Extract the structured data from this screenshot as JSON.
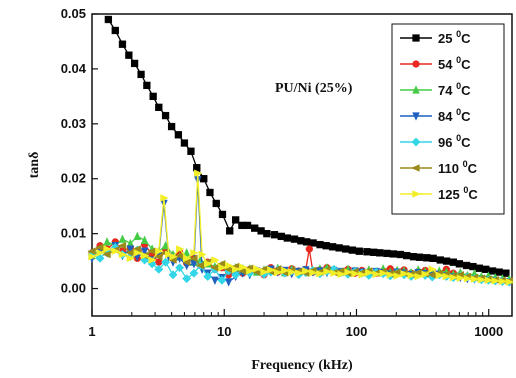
{
  "chart_data": {
    "type": "line",
    "title": "",
    "xlabel": "Frequency (kHz)",
    "ylabel": "tanδ",
    "xscale": "log",
    "xlim": [
      1,
      1500
    ],
    "ylim": [
      -0.005,
      0.05
    ],
    "xticks": [
      1,
      10,
      100,
      1000
    ],
    "xtick_labels": [
      "1",
      "10",
      "100",
      "1000"
    ],
    "yticks": [
      0.0,
      0.01,
      0.02,
      0.03,
      0.04,
      0.05
    ],
    "ytick_labels": [
      "0.00",
      "0.01",
      "0.02",
      "0.03",
      "0.04",
      "0.05"
    ],
    "annotation": "PU/Ni (25%)",
    "legend_position": "top-right",
    "series": [
      {
        "name": "25 °C",
        "label_base": "25 ",
        "label_sup": "0",
        "label_unit": "C",
        "color": "#000000",
        "marker": "square",
        "x": [
          1.33,
          1.5,
          1.7,
          1.9,
          2.1,
          2.35,
          2.6,
          2.9,
          3.2,
          3.6,
          4.0,
          4.5,
          5.0,
          5.6,
          6.2,
          7.0,
          7.8,
          8.7,
          9.7,
          11,
          12.2,
          13.6,
          15,
          17,
          19,
          21,
          24,
          27,
          30,
          34,
          38,
          42,
          47,
          53,
          59,
          66,
          74,
          83,
          93,
          105,
          120,
          135,
          150,
          170,
          190,
          215,
          240,
          270,
          300,
          340,
          380,
          430,
          480,
          540,
          600,
          680,
          760,
          850,
          950,
          1070,
          1200,
          1350
        ],
        "y": [
          0.049,
          0.047,
          0.0445,
          0.0425,
          0.041,
          0.039,
          0.037,
          0.035,
          0.033,
          0.0315,
          0.0295,
          0.028,
          0.0265,
          0.025,
          0.022,
          0.02,
          0.0175,
          0.0155,
          0.0135,
          0.0105,
          0.0125,
          0.0115,
          0.0115,
          0.011,
          0.0105,
          0.01,
          0.0098,
          0.0095,
          0.0092,
          0.009,
          0.0087,
          0.0085,
          0.0083,
          0.008,
          0.0078,
          0.0076,
          0.0074,
          0.0072,
          0.007,
          0.0068,
          0.0067,
          0.0066,
          0.0065,
          0.0064,
          0.0063,
          0.0062,
          0.006,
          0.0058,
          0.0057,
          0.0056,
          0.0055,
          0.0052,
          0.005,
          0.0048,
          0.0045,
          0.0042,
          0.004,
          0.0037,
          0.0035,
          0.0032,
          0.003,
          0.0028
        ]
      },
      {
        "name": "54 °C",
        "label_base": "54 ",
        "label_sup": "0",
        "label_unit": "C",
        "color": "#e8281c",
        "marker": "circle",
        "x": [
          1.0,
          1.15,
          1.3,
          1.5,
          1.7,
          1.95,
          2.2,
          2.5,
          2.85,
          3.2,
          3.6,
          4.1,
          4.6,
          5.2,
          5.9,
          6.6,
          7.5,
          8.5,
          9.6,
          10.8,
          12.2,
          13.8,
          15.6,
          17.6,
          20,
          22.5,
          25.4,
          28.7,
          32.4,
          36.6,
          41.4,
          44,
          46.8,
          52.9,
          59.8,
          67.6,
          76.4,
          86.3,
          97.5,
          110,
          124,
          141,
          159,
          180,
          203,
          229,
          259,
          293,
          331,
          374,
          423,
          478,
          540,
          610,
          690,
          780,
          880,
          995,
          1120,
          1270,
          1430
        ],
        "y": [
          0.0065,
          0.0078,
          0.0072,
          0.0085,
          0.0068,
          0.0075,
          0.0055,
          0.008,
          0.0062,
          0.0048,
          0.0072,
          0.0058,
          0.0066,
          0.0046,
          0.0055,
          0.0042,
          0.0048,
          0.0035,
          0.0038,
          0.0025,
          0.003,
          0.0028,
          0.0035,
          0.0032,
          0.0025,
          0.0038,
          0.003,
          0.0028,
          0.0036,
          0.0032,
          0.0035,
          0.0072,
          0.003,
          0.0034,
          0.0038,
          0.0032,
          0.003,
          0.0035,
          0.0028,
          0.0033,
          0.003,
          0.0028,
          0.0032,
          0.0036,
          0.003,
          0.0034,
          0.0028,
          0.0031,
          0.0033,
          0.003,
          0.0027,
          0.0035,
          0.0028,
          0.0025,
          0.0022,
          0.002,
          0.0018,
          0.0016,
          0.0015,
          0.0014,
          0.0012
        ]
      },
      {
        "name": "74 °C",
        "label_base": "74 ",
        "label_sup": "0",
        "label_unit": "C",
        "color": "#44cc44",
        "marker": "triangle-up",
        "x": [
          1.0,
          1.15,
          1.3,
          1.5,
          1.7,
          1.95,
          2.2,
          2.5,
          2.85,
          3.2,
          3.6,
          4.1,
          4.6,
          5.2,
          5.9,
          6.6,
          7.5,
          8.5,
          9.6,
          10.8,
          12.2,
          13.8,
          15.6,
          17.6,
          20,
          22.5,
          25.4,
          28.7,
          32.4,
          36.6,
          41.4,
          46.8,
          52.9,
          59.8,
          67.6,
          76.4,
          86.3,
          97.5,
          110,
          124,
          141,
          159,
          180,
          203,
          229,
          259,
          293,
          331,
          374,
          423,
          478,
          540,
          610,
          690,
          780,
          880,
          995,
          1120,
          1270,
          1430
        ],
        "y": [
          0.006,
          0.0072,
          0.0085,
          0.0078,
          0.009,
          0.0082,
          0.0095,
          0.0088,
          0.0072,
          0.0068,
          0.0078,
          0.0062,
          0.0058,
          0.0065,
          0.0048,
          0.0052,
          0.0045,
          0.004,
          0.0042,
          0.0035,
          0.0038,
          0.0032,
          0.0036,
          0.003,
          0.0034,
          0.0032,
          0.0037,
          0.0029,
          0.0035,
          0.0031,
          0.0034,
          0.0032,
          0.0036,
          0.0038,
          0.0033,
          0.003,
          0.0035,
          0.0032,
          0.0029,
          0.0034,
          0.0031,
          0.0036,
          0.003,
          0.0033,
          0.0032,
          0.0029,
          0.0034,
          0.0031,
          0.0028,
          0.0032,
          0.003,
          0.0026,
          0.0029,
          0.0024,
          0.0027,
          0.0022,
          0.0023,
          0.002,
          0.0018,
          0.0017
        ]
      },
      {
        "name": "84 °C",
        "label_base": "84 ",
        "label_sup": "0",
        "label_unit": "C",
        "color": "#1f5fbf",
        "marker": "triangle-down",
        "x": [
          1.0,
          1.15,
          1.3,
          1.5,
          1.7,
          1.95,
          2.2,
          2.5,
          2.85,
          3.2,
          3.5,
          3.8,
          4.1,
          4.6,
          5.2,
          5.9,
          6.3,
          6.8,
          7.5,
          8.5,
          9.6,
          10.8,
          12.2,
          13.8,
          15.6,
          17.6,
          20,
          22.5,
          25.4,
          28.7,
          32.4,
          36.6,
          41.4,
          46.8,
          52.9,
          59.8,
          67.6,
          76.4,
          86.3,
          97.5,
          110,
          124,
          141,
          159,
          180,
          203,
          229,
          259,
          293,
          331,
          374,
          423,
          478,
          540,
          610,
          690,
          780,
          880,
          995,
          1120,
          1270,
          1430
        ],
        "y": [
          0.0055,
          0.007,
          0.0065,
          0.0078,
          0.006,
          0.0072,
          0.0058,
          0.0068,
          0.0052,
          0.0062,
          0.0155,
          0.0058,
          0.0048,
          0.0055,
          0.0042,
          0.0045,
          0.0198,
          0.0035,
          0.0028,
          0.0015,
          0.002,
          0.0012,
          0.0022,
          0.0028,
          0.0025,
          0.0032,
          0.0028,
          0.0035,
          0.003,
          0.0033,
          0.0027,
          0.0031,
          0.0034,
          0.003,
          0.0032,
          0.0029,
          0.0033,
          0.0031,
          0.0028,
          0.0032,
          0.003,
          0.0027,
          0.0031,
          0.0029,
          0.0026,
          0.003,
          0.0028,
          0.0025,
          0.0029,
          0.0027,
          0.0024,
          0.0026,
          0.0023,
          0.0021,
          0.002,
          0.0018,
          0.0017,
          0.0016,
          0.0015,
          0.0014,
          0.0013,
          0.0012
        ]
      },
      {
        "name": "96 °C",
        "label_base": "96 ",
        "label_sup": "0",
        "label_unit": "C",
        "color": "#33d6e6",
        "marker": "diamond",
        "x": [
          1.0,
          1.15,
          1.3,
          1.5,
          1.7,
          1.95,
          2.2,
          2.5,
          2.85,
          3.2,
          3.6,
          4.1,
          4.6,
          5.2,
          5.9,
          6.6,
          7.5,
          8.5,
          9.6,
          10.8,
          12.2,
          13.8,
          15.6,
          17.6,
          20,
          22.5,
          25.4,
          28.7,
          32.4,
          36.6,
          41.4,
          46.8,
          52.9,
          59.8,
          67.6,
          76.4,
          86.3,
          97.5,
          110,
          124,
          141,
          159,
          180,
          203,
          229,
          259,
          293,
          331,
          374,
          423,
          478,
          540,
          610,
          690,
          780,
          880,
          995,
          1120,
          1270,
          1430
        ],
        "y": [
          0.0062,
          0.0055,
          0.0068,
          0.0075,
          0.0062,
          0.0058,
          0.007,
          0.0052,
          0.0045,
          0.0035,
          0.0048,
          0.0025,
          0.0038,
          0.0018,
          0.0028,
          0.0042,
          0.0022,
          0.0035,
          0.0015,
          0.0032,
          0.0025,
          0.0036,
          0.0028,
          0.0033,
          0.0026,
          0.003,
          0.0034,
          0.0028,
          0.0032,
          0.0025,
          0.0029,
          0.0033,
          0.0027,
          0.0031,
          0.0035,
          0.0029,
          0.0026,
          0.0031,
          0.0028,
          0.0024,
          0.003,
          0.0027,
          0.0023,
          0.0028,
          0.0025,
          0.0022,
          0.0026,
          0.0024,
          0.0021,
          0.0025,
          0.0022,
          0.002,
          0.0023,
          0.0021,
          0.0018,
          0.0016,
          0.0015,
          0.0014,
          0.0013,
          0.0012
        ]
      },
      {
        "name": "110 °C",
        "label_base": "110 ",
        "label_sup": "0",
        "label_unit": "C",
        "color": "#9a8a1a",
        "marker": "triangle-left",
        "x": [
          1.0,
          1.15,
          1.3,
          1.5,
          1.7,
          1.95,
          2.2,
          2.5,
          2.85,
          3.2,
          3.6,
          4.1,
          4.6,
          5.2,
          5.9,
          6.6,
          7.5,
          8.5,
          9.6,
          10.8,
          12.2,
          13.8,
          15.6,
          17.6,
          20,
          22.5,
          25.4,
          28.7,
          32.4,
          36.6,
          41.4,
          46.8,
          52.9,
          59.8,
          67.6,
          76.4,
          86.3,
          97.5,
          110,
          124,
          141,
          159,
          180,
          203,
          229,
          259,
          293,
          331,
          374,
          423,
          478,
          540,
          610,
          690,
          780,
          880,
          995,
          1120,
          1270,
          1430
        ],
        "y": [
          0.0068,
          0.0075,
          0.0062,
          0.007,
          0.0078,
          0.0065,
          0.0072,
          0.006,
          0.0068,
          0.0058,
          0.0065,
          0.0052,
          0.006,
          0.0048,
          0.0055,
          0.0042,
          0.0048,
          0.0038,
          0.0045,
          0.0035,
          0.004,
          0.0032,
          0.0037,
          0.003,
          0.0035,
          0.0031,
          0.0036,
          0.0029,
          0.0034,
          0.0031,
          0.0028,
          0.0033,
          0.003,
          0.0034,
          0.0029,
          0.0032,
          0.0028,
          0.0031,
          0.0029,
          0.0032,
          0.0028,
          0.0031,
          0.0027,
          0.003,
          0.0028,
          0.0026,
          0.0029,
          0.0027,
          0.0025,
          0.0028,
          0.0026,
          0.0023,
          0.0025,
          0.0022,
          0.002,
          0.0019,
          0.0017,
          0.0016,
          0.0015,
          0.0014
        ]
      },
      {
        "name": "125 °C",
        "label_base": "125 ",
        "label_sup": "0",
        "label_unit": "C",
        "color": "#f2ee28",
        "marker": "triangle-right",
        "x": [
          1.0,
          1.15,
          1.3,
          1.5,
          1.7,
          1.95,
          2.2,
          2.5,
          2.85,
          3.2,
          3.5,
          3.8,
          4.1,
          4.6,
          5.2,
          5.9,
          6.3,
          6.8,
          7.5,
          8.5,
          9.6,
          10.8,
          12.2,
          13.8,
          15.6,
          17.6,
          20,
          22.5,
          25.4,
          28.7,
          32.4,
          36.6,
          41.4,
          46.8,
          52.9,
          59.8,
          67.6,
          76.4,
          86.3,
          97.5,
          110,
          124,
          141,
          159,
          180,
          203,
          229,
          259,
          293,
          331,
          374,
          423,
          478,
          540,
          610,
          690,
          780,
          880,
          995,
          1120,
          1270,
          1430
        ],
        "y": [
          0.0058,
          0.0065,
          0.0072,
          0.0068,
          0.0062,
          0.0055,
          0.0065,
          0.006,
          0.0052,
          0.0068,
          0.0165,
          0.0062,
          0.0058,
          0.0072,
          0.0055,
          0.0065,
          0.021,
          0.0062,
          0.0045,
          0.0052,
          0.0038,
          0.0042,
          0.0035,
          0.0039,
          0.0032,
          0.0036,
          0.003,
          0.0034,
          0.0029,
          0.0033,
          0.003,
          0.0028,
          0.0032,
          0.0029,
          0.0027,
          0.0031,
          0.0028,
          0.0026,
          0.003,
          0.0027,
          0.0025,
          0.0029,
          0.0026,
          0.0028,
          0.0025,
          0.0023,
          0.0027,
          0.0024,
          0.0022,
          0.0026,
          0.0035,
          0.0024,
          0.0022,
          0.002,
          0.0019,
          0.0018,
          0.0017,
          0.0016,
          0.0015,
          0.0014,
          0.0013,
          0.0012
        ]
      }
    ]
  }
}
